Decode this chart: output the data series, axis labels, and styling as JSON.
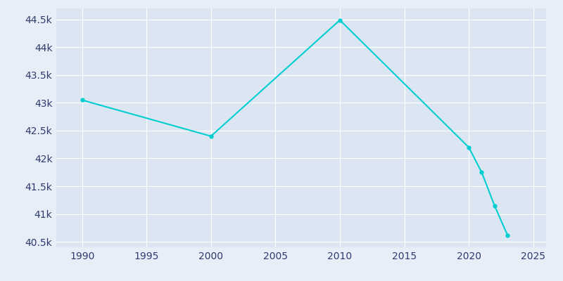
{
  "years": [
    1990,
    2000,
    2010,
    2020,
    2021,
    2022,
    2023
  ],
  "population": [
    43050,
    42400,
    44490,
    42200,
    41750,
    41150,
    40620
  ],
  "line_color": "#00CED1",
  "marker": "o",
  "marker_size": 3.5,
  "background_color": "#e8eef7",
  "plot_bg_color": "#dce6f2",
  "grid_color": "#ffffff",
  "tick_color": "#2d3a6e",
  "xlim": [
    1988,
    2026
  ],
  "ylim": [
    40400,
    44700
  ],
  "xticks": [
    1990,
    1995,
    2000,
    2005,
    2010,
    2015,
    2020,
    2025
  ],
  "yticks": [
    40500,
    41000,
    41500,
    42000,
    42500,
    43000,
    43500,
    44000,
    44500
  ],
  "ytick_labels": [
    "40.5k",
    "41k",
    "41.5k",
    "42k",
    "42.5k",
    "43k",
    "43.5k",
    "44k",
    "44.5k"
  ],
  "figsize": [
    8.0,
    4.0
  ],
  "dpi": 100
}
